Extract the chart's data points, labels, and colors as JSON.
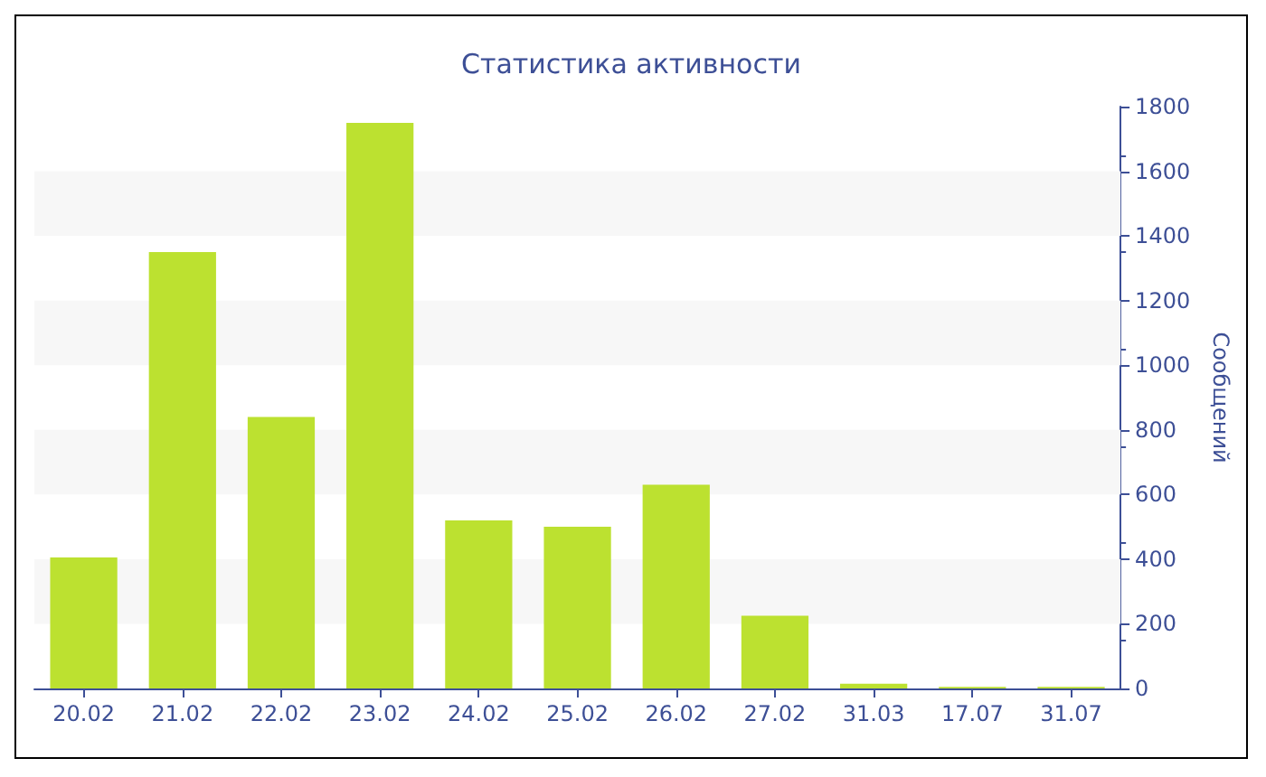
{
  "chart_data": {
    "type": "bar",
    "title": "Статистика активности",
    "ylabel": "Сообщений",
    "categories": [
      "20.02",
      "21.02",
      "22.02",
      "23.02",
      "24.02",
      "25.02",
      "26.02",
      "27.02",
      "31.03",
      "17.07",
      "31.07"
    ],
    "values": [
      405,
      1350,
      840,
      1750,
      520,
      500,
      630,
      225,
      15,
      5,
      5
    ],
    "color": "#bce130",
    "ylim": [
      0,
      1800
    ],
    "yticks": [
      0,
      200,
      400,
      600,
      800,
      1000,
      1200,
      1400,
      1600,
      1800
    ],
    "bands": [
      {
        "axis": "y",
        "from": 200,
        "to": 400,
        "color": "#f7f7f7"
      },
      {
        "axis": "y",
        "from": 600,
        "to": 800,
        "color": "#f7f7f7"
      },
      {
        "axis": "y",
        "from": 1000,
        "to": 1200,
        "color": "#f7f7f7"
      },
      {
        "axis": "y",
        "from": 1400,
        "to": 1600,
        "color": "#f7f7f7"
      }
    ],
    "grid": false
  }
}
